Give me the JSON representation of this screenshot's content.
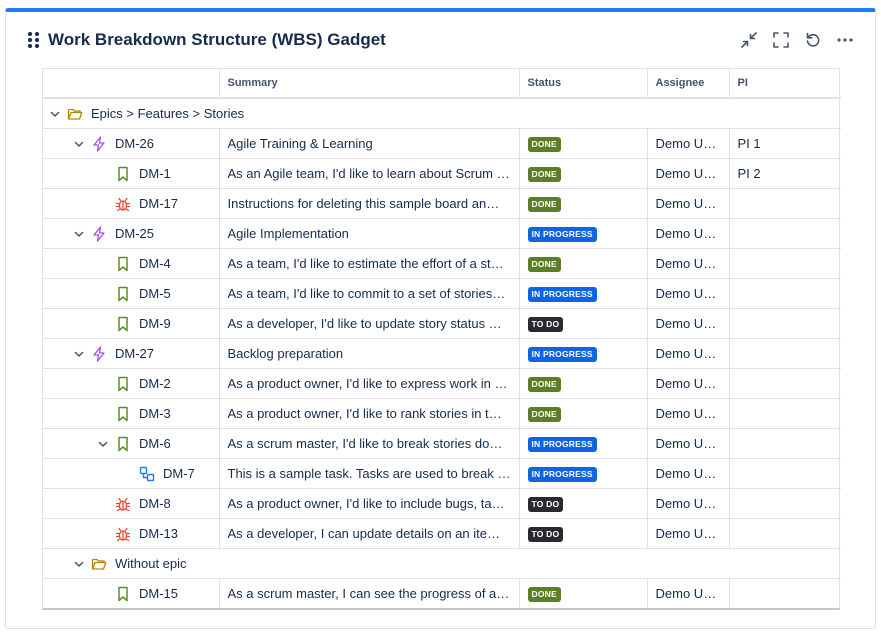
{
  "gadget": {
    "title": "Work Breakdown Structure (WBS) Gadget",
    "accent": "#1d7afc",
    "actions": [
      {
        "name": "minimize-icon"
      },
      {
        "name": "fullscreen-icon"
      },
      {
        "name": "refresh-icon"
      },
      {
        "name": "more-icon"
      }
    ]
  },
  "columns": {
    "tree": "",
    "summary": "Summary",
    "status": "Status",
    "assignee": "Assignee",
    "pi": "PI"
  },
  "statuses": {
    "done": "DONE",
    "in_progress": "IN PROGRESS",
    "todo": "TO DO"
  },
  "colors": {
    "done": "#5b7f24",
    "in_progress": "#0c66e4",
    "todo": "#292a2e",
    "epic": "#a54ef0",
    "story": "#5b8f22",
    "bug": "#e34935",
    "subtask": "#1d7afc",
    "folder": "#b38600"
  },
  "rows": [
    {
      "level": 0,
      "chevron": true,
      "icon": "folder-icon",
      "key": "Epics > Features > Stories",
      "group": true
    },
    {
      "level": 1,
      "chevron": true,
      "icon": "epic-icon",
      "key": "DM-26",
      "summary": "Agile Training & Learning",
      "status": "done",
      "assignee": "Demo User",
      "pi": "PI 1"
    },
    {
      "level": 2,
      "chevron": false,
      "icon": "story-icon",
      "key": "DM-1",
      "summary": "As an Agile team, I'd like to learn about Scrum …",
      "status": "done",
      "assignee": "Demo User",
      "pi": "PI 2"
    },
    {
      "level": 2,
      "chevron": false,
      "icon": "bug-icon",
      "key": "DM-17",
      "summary": "Instructions for deleting this sample board an…",
      "status": "done",
      "assignee": "Demo User",
      "pi": ""
    },
    {
      "level": 1,
      "chevron": true,
      "icon": "epic-icon",
      "key": "DM-25",
      "summary": "Agile Implementation",
      "status": "in_progress",
      "assignee": "Demo User",
      "pi": ""
    },
    {
      "level": 2,
      "chevron": false,
      "icon": "story-icon",
      "key": "DM-4",
      "summary": "As a team, I'd like to estimate the effort of a st…",
      "status": "done",
      "assignee": "Demo User",
      "pi": ""
    },
    {
      "level": 2,
      "chevron": false,
      "icon": "story-icon",
      "key": "DM-5",
      "summary": "As a team, I'd like to commit to a set of stories…",
      "status": "in_progress",
      "assignee": "Demo User",
      "pi": ""
    },
    {
      "level": 2,
      "chevron": false,
      "icon": "story-icon",
      "key": "DM-9",
      "summary": "As a developer, I'd like to update story status …",
      "status": "todo",
      "assignee": "Demo User",
      "pi": ""
    },
    {
      "level": 1,
      "chevron": true,
      "icon": "epic-icon",
      "key": "DM-27",
      "summary": "Backlog preparation",
      "status": "in_progress",
      "assignee": "Demo User",
      "pi": ""
    },
    {
      "level": 2,
      "chevron": false,
      "icon": "story-icon",
      "key": "DM-2",
      "summary": "As a product owner, I'd like to express work in …",
      "status": "done",
      "assignee": "Demo User",
      "pi": ""
    },
    {
      "level": 2,
      "chevron": false,
      "icon": "story-icon",
      "key": "DM-3",
      "summary": "As a product owner, I'd like to rank stories in t…",
      "status": "done",
      "assignee": "Demo User",
      "pi": ""
    },
    {
      "level": 2,
      "chevron": true,
      "icon": "story-icon",
      "key": "DM-6",
      "summary": "As a scrum master, I'd like to break stories do…",
      "status": "in_progress",
      "assignee": "Demo User",
      "pi": ""
    },
    {
      "level": 3,
      "chevron": false,
      "icon": "subtask-icon",
      "key": "DM-7",
      "summary": "This is a sample task. Tasks are used to break d…",
      "status": "in_progress",
      "assignee": "Demo User",
      "pi": ""
    },
    {
      "level": 2,
      "chevron": false,
      "icon": "bug-icon",
      "key": "DM-8",
      "summary": "As a product owner, I'd like to include bugs, ta…",
      "status": "todo",
      "assignee": "Demo User",
      "pi": ""
    },
    {
      "level": 2,
      "chevron": false,
      "icon": "bug-icon",
      "key": "DM-13",
      "summary": "As a developer, I can update details on an item…",
      "status": "todo",
      "assignee": "Demo User",
      "pi": ""
    },
    {
      "level": 1,
      "chevron": true,
      "icon": "folder-icon",
      "key": "Without epic",
      "group": true
    },
    {
      "level": 2,
      "chevron": false,
      "icon": "story-icon",
      "key": "DM-15",
      "summary": "As a scrum master, I can see the progress of a …",
      "status": "done",
      "assignee": "Demo User",
      "pi": ""
    }
  ]
}
